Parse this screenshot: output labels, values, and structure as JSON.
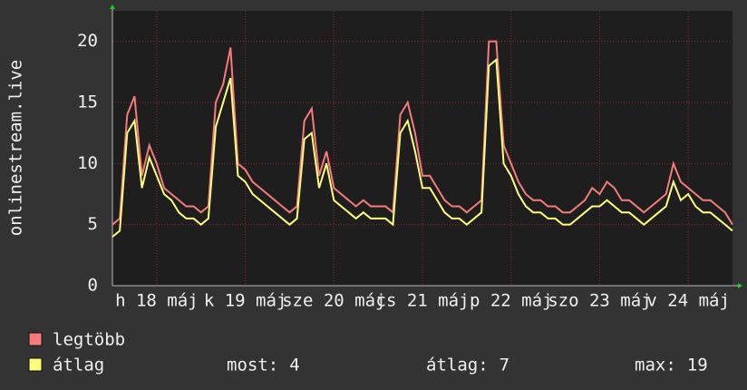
{
  "chart_data": {
    "type": "line",
    "y_label": "onlinestream.live",
    "xlim": [
      0,
      168
    ],
    "xticks": [
      {
        "value": 12,
        "label": "h 18 máj"
      },
      {
        "value": 36,
        "label": "k 19 máj"
      },
      {
        "value": 60,
        "label": "sze 20 máj"
      },
      {
        "value": 84,
        "label": "cs 21 máj"
      },
      {
        "value": 108,
        "label": "p 22 máj"
      },
      {
        "value": 132,
        "label": "szo 23 máj"
      },
      {
        "value": 156,
        "label": "v 24 máj"
      }
    ],
    "ylim": [
      0,
      22.5
    ],
    "yticks": [
      0,
      5,
      10,
      15,
      20
    ],
    "grid": true,
    "x": [
      0,
      2,
      4,
      6,
      8,
      10,
      12,
      14,
      16,
      18,
      20,
      22,
      24,
      26,
      28,
      30,
      32,
      34,
      36,
      38,
      40,
      42,
      44,
      46,
      48,
      50,
      52,
      54,
      56,
      58,
      60,
      62,
      64,
      66,
      68,
      70,
      72,
      74,
      76,
      78,
      80,
      82,
      84,
      86,
      88,
      90,
      92,
      94,
      96,
      98,
      100,
      102,
      104,
      106,
      108,
      110,
      112,
      114,
      116,
      118,
      120,
      122,
      124,
      126,
      128,
      130,
      132,
      134,
      136,
      138,
      140,
      142,
      144,
      146,
      148,
      150,
      152,
      154,
      156,
      158,
      160,
      162,
      164,
      166,
      168
    ],
    "series": [
      {
        "name": "legtöbb",
        "color": "#f77b7b",
        "values": [
          5,
          5.5,
          14,
          15.5,
          9,
          11.5,
          10,
          8,
          7.5,
          7,
          6.5,
          6.5,
          6,
          6.5,
          15,
          16.5,
          19.5,
          10,
          9.5,
          8.5,
          8,
          7.5,
          7,
          6.5,
          6,
          6.5,
          13.5,
          14.5,
          9,
          11,
          8,
          7.5,
          7,
          6.5,
          7,
          6.5,
          6.5,
          6.5,
          6,
          14,
          15,
          12.5,
          9,
          9,
          8,
          7,
          6.5,
          6.5,
          6,
          6.5,
          7,
          20,
          20,
          11.5,
          10,
          8.5,
          7.5,
          7,
          7,
          6.5,
          6.5,
          6,
          6,
          6.5,
          7,
          8,
          7.5,
          8.5,
          8,
          7,
          7,
          6.5,
          6,
          6.5,
          7,
          7.5,
          10,
          8.5,
          8,
          7.5,
          7,
          7,
          6.5,
          6,
          5
        ]
      },
      {
        "name": "átlag",
        "color": "#ffff7a",
        "values": [
          4,
          4.5,
          12.5,
          13.5,
          8,
          10.5,
          9,
          7.5,
          7,
          6,
          5.5,
          5.5,
          5,
          5.5,
          13,
          15,
          17,
          9,
          8.5,
          7.5,
          7,
          6.5,
          6,
          5.5,
          5,
          5.5,
          12,
          12.5,
          8,
          10,
          7,
          6.5,
          6,
          5.5,
          6,
          5.5,
          5.5,
          5.5,
          5,
          12.5,
          13.5,
          11,
          8,
          8,
          7,
          6,
          5.5,
          5.5,
          5,
          5.5,
          6,
          18,
          18.5,
          10,
          9,
          7.5,
          6.5,
          6,
          6,
          5.5,
          5.5,
          5,
          5,
          5.5,
          6,
          6.5,
          6.5,
          7,
          6.5,
          6,
          6,
          5.5,
          5,
          5.5,
          6,
          6.5,
          8.5,
          7,
          7.5,
          6.5,
          6,
          6,
          5.5,
          5,
          4.5
        ]
      }
    ],
    "stats": [
      {
        "label": "most:",
        "value": 4
      },
      {
        "label": "átlag:",
        "value": 7
      },
      {
        "label": "max:",
        "value": 19
      }
    ]
  }
}
